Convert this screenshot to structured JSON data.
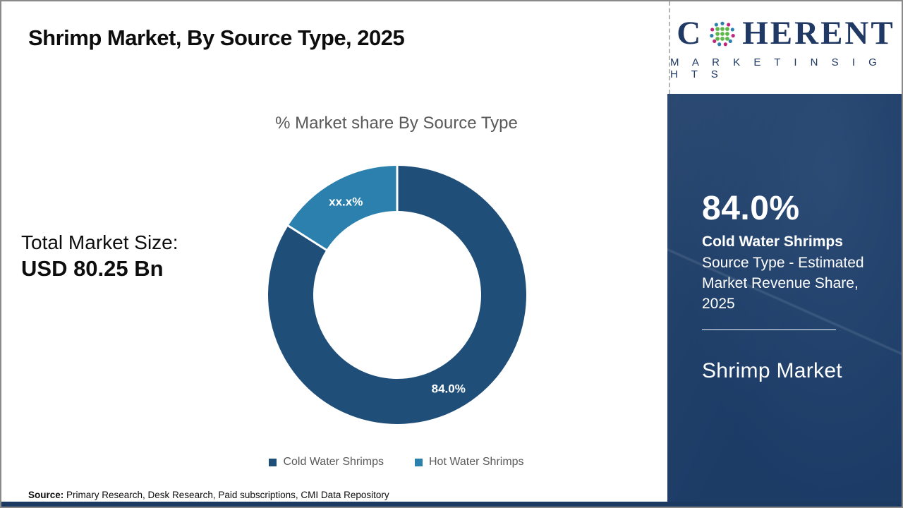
{
  "page": {
    "title": "Shrimp Market, By Source Type, 2025",
    "source_prefix": "Source:",
    "source_text": " Primary Research, Desk Research, Paid subscriptions, CMI Data Repository"
  },
  "logo": {
    "word_start": "C",
    "word_end": "HERENT",
    "subtitle": "M A R K E T   I N S I G H T S"
  },
  "stats": {
    "total_label": "Total Market Size:",
    "total_value": "USD 80.25 Bn"
  },
  "sidebar": {
    "highlight_value": "84.0%",
    "highlight_segment": "Cold Water Shrimps",
    "highlight_desc": "Source Type - Estimated Market Revenue Share, 2025",
    "market_name": "Shrimp Market"
  },
  "chart_data": {
    "type": "pie",
    "donut": true,
    "title": "% Market share By Source Type",
    "start_angle_deg": 0,
    "legend_position": "bottom",
    "series": [
      {
        "name": "Cold Water Shrimps",
        "value": 84.0,
        "label": "84.0%",
        "color": "#1f4e79"
      },
      {
        "name": "Hot Water Shrimps",
        "value": 16.0,
        "label": "xx.x%",
        "color": "#2b80ad"
      }
    ]
  },
  "colors": {
    "accent_dark": "#1f4e79",
    "accent_light": "#2b80ad",
    "sidebar_bg": "#1d3f6c",
    "logo_navy": "#1f3864",
    "chart_text_gray": "#595959"
  }
}
